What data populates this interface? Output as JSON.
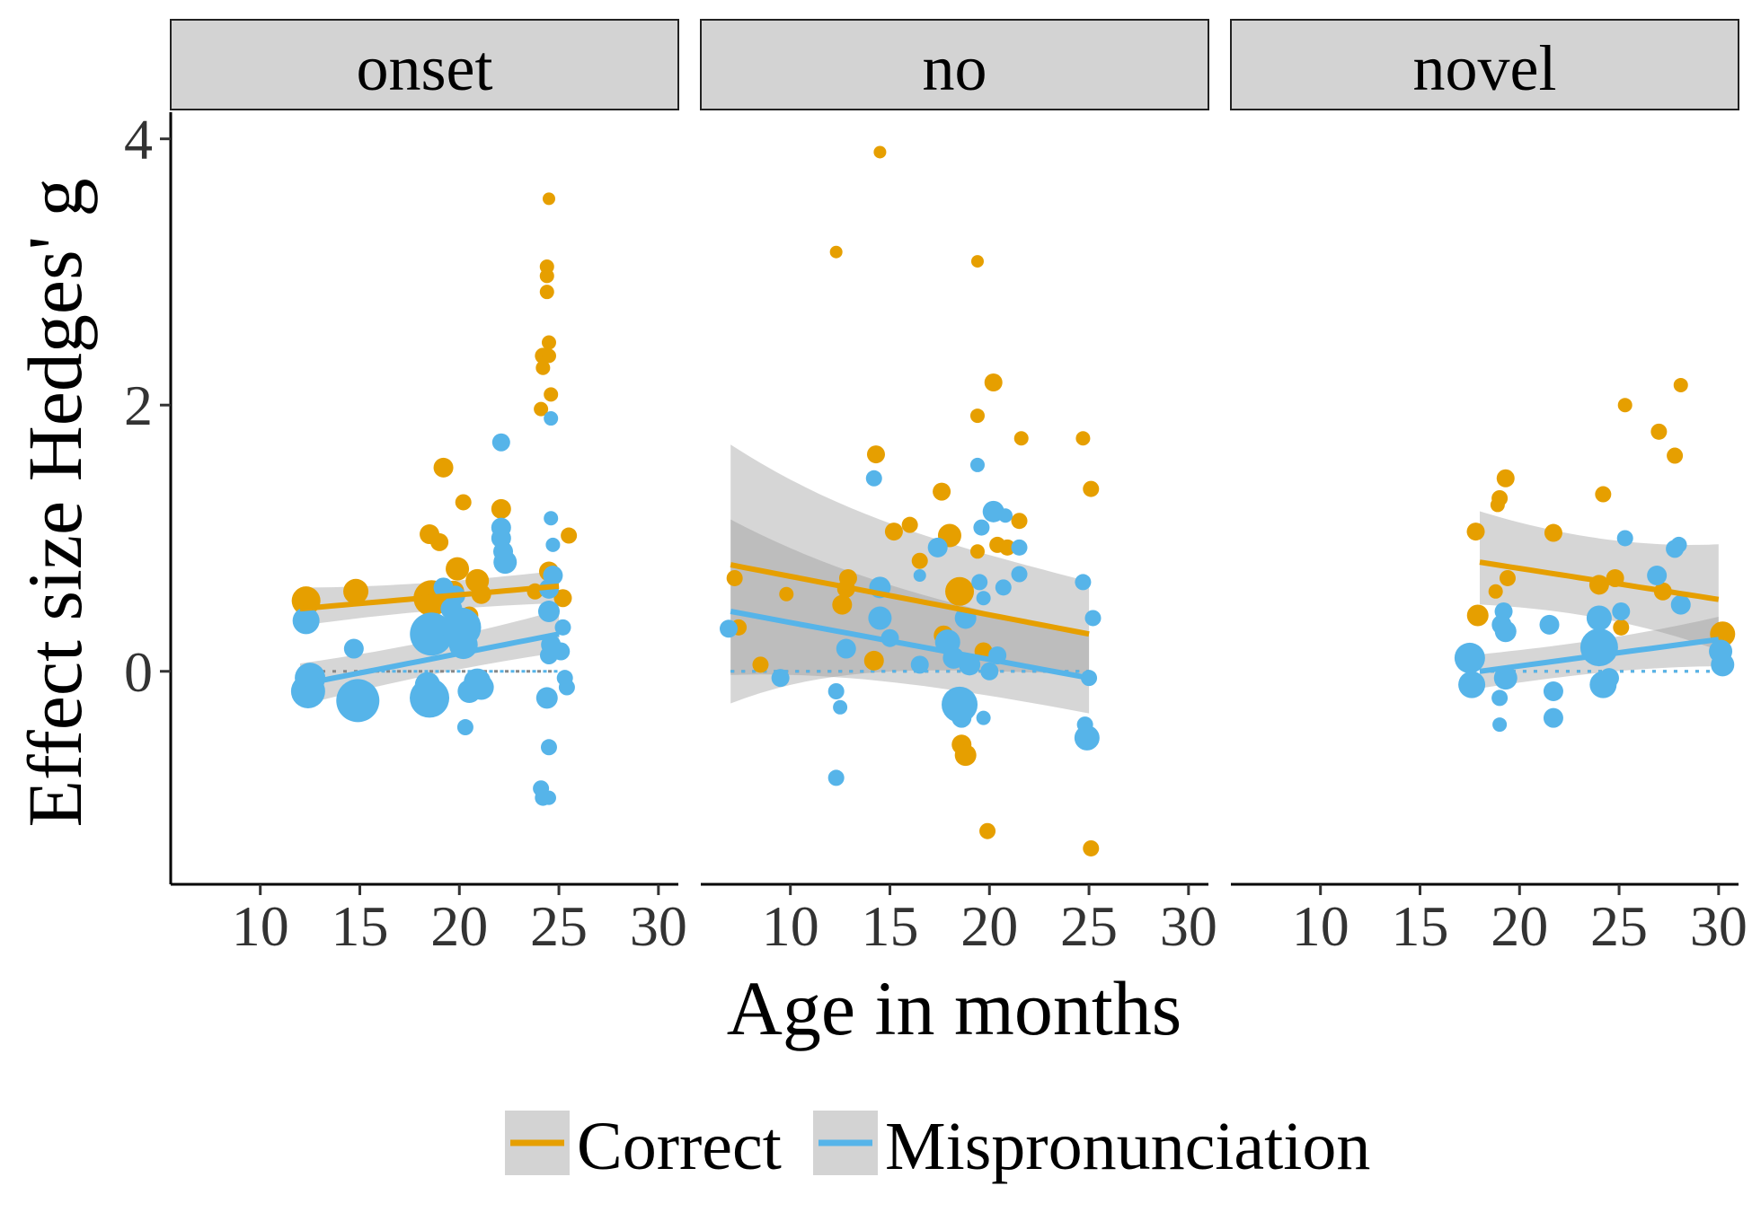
{
  "chart_data": {
    "type": "scatter",
    "xlabel": "Age in months",
    "ylabel": "Effect size Hedges' g",
    "xlim": [
      5.5,
      31
    ],
    "ylim": [
      -1.6,
      4.2
    ],
    "x_ticks": [
      10,
      15,
      20,
      25,
      30
    ],
    "y_ticks": [
      0,
      2,
      4
    ],
    "legend": {
      "position": "bottom",
      "entries": [
        {
          "name": "Correct",
          "color": "#E69F00"
        },
        {
          "name": "Mispronunciation",
          "color": "#56B4E9"
        }
      ]
    },
    "colors": {
      "Correct": "#E69F00",
      "Mispronunciation": "#56B4E9",
      "band": "#999999",
      "strip": "#d3d3d3"
    },
    "panels": [
      {
        "label": "onset",
        "fits": {
          "Correct": {
            "x": [
              12,
              25
            ],
            "y": [
              0.47,
              0.64
            ],
            "lower": [
              0.35,
              0.52
            ],
            "upper": [
              0.62,
              0.75
            ]
          },
          "Mispronunciation": {
            "x": [
              12,
              25
            ],
            "y": [
              -0.1,
              0.28
            ],
            "lower": [
              -0.25,
              0.15
            ],
            "upper": [
              0.05,
              0.45
            ]
          }
        },
        "baseline": {
          "Correct": [
            12,
            25
          ],
          "Mispronunciation": [
            15,
            25
          ]
        },
        "points": {
          "Correct": [
            [
              12.3,
              0.53,
              16
            ],
            [
              14.8,
              0.6,
              14
            ],
            [
              18.5,
              1.03,
              11
            ],
            [
              18.6,
              0.55,
              20
            ],
            [
              19.0,
              0.97,
              10
            ],
            [
              19.2,
              1.53,
              11
            ],
            [
              19.7,
              0.6,
              12
            ],
            [
              19.9,
              0.77,
              13
            ],
            [
              20.2,
              1.27,
              9
            ],
            [
              20.5,
              0.42,
              10
            ],
            [
              20.9,
              0.68,
              13
            ],
            [
              21.1,
              0.58,
              11
            ],
            [
              22.1,
              1.22,
              11
            ],
            [
              22.3,
              0.85,
              9
            ],
            [
              23.8,
              0.6,
              9
            ],
            [
              24.1,
              1.97,
              8
            ],
            [
              24.2,
              2.28,
              8
            ],
            [
              24.2,
              2.37,
              9
            ],
            [
              24.5,
              2.37,
              8
            ],
            [
              24.5,
              2.47,
              8
            ],
            [
              24.4,
              2.85,
              8
            ],
            [
              24.4,
              2.97,
              8
            ],
            [
              24.4,
              3.04,
              8
            ],
            [
              24.5,
              3.55,
              7
            ],
            [
              24.6,
              2.08,
              8
            ],
            [
              25.2,
              0.55,
              10
            ],
            [
              25.5,
              1.02,
              9
            ],
            [
              24.5,
              0.75,
              11
            ]
          ],
          "Mispronunciation": [
            [
              12.3,
              0.38,
              15
            ],
            [
              12.5,
              -0.05,
              17
            ],
            [
              12.4,
              -0.15,
              19
            ],
            [
              14.7,
              0.17,
              11
            ],
            [
              14.9,
              -0.22,
              24
            ],
            [
              18.4,
              -0.1,
              14
            ],
            [
              18.5,
              -0.2,
              22
            ],
            [
              18.6,
              0.28,
              24
            ],
            [
              19.2,
              0.63,
              11
            ],
            [
              19.6,
              0.47,
              12
            ],
            [
              19.8,
              0.57,
              11
            ],
            [
              20.1,
              0.33,
              22
            ],
            [
              20.2,
              0.2,
              16
            ],
            [
              20.3,
              -0.42,
              9
            ],
            [
              20.5,
              -0.15,
              13
            ],
            [
              20.9,
              -0.08,
              15
            ],
            [
              21.1,
              -0.12,
              14
            ],
            [
              22.1,
              1.72,
              10
            ],
            [
              22.1,
              1.08,
              11
            ],
            [
              22.1,
              1.0,
              11
            ],
            [
              22.2,
              0.9,
              11
            ],
            [
              22.3,
              0.82,
              13
            ],
            [
              24.1,
              -0.88,
              9
            ],
            [
              24.2,
              -0.95,
              9
            ],
            [
              24.4,
              -0.2,
              12
            ],
            [
              24.5,
              -0.95,
              8
            ],
            [
              24.5,
              -0.57,
              9
            ],
            [
              24.5,
              0.12,
              10
            ],
            [
              24.6,
              0.2,
              11
            ],
            [
              24.5,
              0.45,
              12
            ],
            [
              24.5,
              0.62,
              11
            ],
            [
              24.7,
              0.72,
              11
            ],
            [
              24.6,
              1.15,
              8
            ],
            [
              24.6,
              1.9,
              8
            ],
            [
              24.7,
              0.95,
              8
            ],
            [
              25.1,
              0.15,
              10
            ],
            [
              25.2,
              0.33,
              9
            ],
            [
              25.3,
              -0.05,
              9
            ],
            [
              25.4,
              -0.12,
              9
            ]
          ]
        }
      },
      {
        "label": "no",
        "fits": {
          "Correct": {
            "x": [
              7,
              25
            ],
            "y": [
              0.8,
              0.28
            ],
            "lower": [
              -0.18,
              0.0
            ],
            "upper": [
              1.65,
              0.65
            ]
          },
          "Mispronunciation": {
            "x": [
              7,
              25
            ],
            "y": [
              0.45,
              -0.05
            ],
            "lower": [
              0.0,
              -0.3
            ],
            "upper": [
              1.1,
              0.25
            ]
          }
        },
        "baseline": {
          "Correct": [
            7,
            25
          ],
          "Mispronunciation": [
            7,
            25
          ]
        },
        "points": {
          "Correct": [
            [
              7.2,
              0.7,
              9
            ],
            [
              7.4,
              0.33,
              9
            ],
            [
              8.5,
              0.05,
              9
            ],
            [
              9.8,
              0.58,
              8
            ],
            [
              12.3,
              3.15,
              7
            ],
            [
              12.6,
              0.5,
              11
            ],
            [
              12.8,
              0.62,
              10
            ],
            [
              12.9,
              0.7,
              10
            ],
            [
              14.2,
              0.08,
              11
            ],
            [
              14.3,
              1.63,
              10
            ],
            [
              14.5,
              3.9,
              7
            ],
            [
              15.2,
              1.05,
              10
            ],
            [
              16.0,
              1.1,
              9
            ],
            [
              16.5,
              0.83,
              9
            ],
            [
              17.6,
              1.35,
              10
            ],
            [
              17.7,
              0.27,
              11
            ],
            [
              18.0,
              1.02,
              13
            ],
            [
              18.5,
              0.6,
              16
            ],
            [
              18.6,
              -0.55,
              11
            ],
            [
              18.8,
              -0.63,
              12
            ],
            [
              19.4,
              0.9,
              8
            ],
            [
              19.4,
              1.92,
              8
            ],
            [
              19.4,
              3.08,
              7
            ],
            [
              19.7,
              0.15,
              10
            ],
            [
              19.9,
              -1.2,
              9
            ],
            [
              20.2,
              2.17,
              10
            ],
            [
              20.4,
              0.95,
              9
            ],
            [
              20.9,
              0.93,
              9
            ],
            [
              21.5,
              1.13,
              9
            ],
            [
              21.6,
              1.75,
              8
            ],
            [
              24.7,
              1.75,
              8
            ],
            [
              25.1,
              1.37,
              9
            ],
            [
              25.1,
              -1.33,
              9
            ]
          ],
          "Mispronunciation": [
            [
              6.9,
              0.32,
              10
            ],
            [
              9.5,
              -0.05,
              10
            ],
            [
              12.3,
              -0.8,
              9
            ],
            [
              12.3,
              -0.15,
              9
            ],
            [
              12.5,
              -0.27,
              8
            ],
            [
              12.8,
              0.17,
              11
            ],
            [
              14.2,
              1.45,
              9
            ],
            [
              14.5,
              0.63,
              12
            ],
            [
              14.5,
              0.4,
              13
            ],
            [
              15.0,
              0.25,
              10
            ],
            [
              16.5,
              0.05,
              10
            ],
            [
              16.5,
              0.72,
              7
            ],
            [
              17.4,
              0.93,
              11
            ],
            [
              17.9,
              0.22,
              14
            ],
            [
              18.2,
              0.1,
              12
            ],
            [
              18.5,
              -0.25,
              20
            ],
            [
              18.6,
              -0.35,
              11
            ],
            [
              18.8,
              0.4,
              12
            ],
            [
              19.0,
              0.05,
              12
            ],
            [
              19.4,
              1.55,
              8
            ],
            [
              19.5,
              0.67,
              9
            ],
            [
              19.6,
              1.08,
              9
            ],
            [
              19.7,
              0.55,
              8
            ],
            [
              19.7,
              -0.35,
              8
            ],
            [
              20.0,
              0.0,
              10
            ],
            [
              20.2,
              1.2,
              12
            ],
            [
              20.4,
              0.12,
              10
            ],
            [
              20.7,
              0.63,
              9
            ],
            [
              20.8,
              1.17,
              8
            ],
            [
              21.5,
              0.93,
              9
            ],
            [
              21.5,
              0.73,
              9
            ],
            [
              24.7,
              0.67,
              9
            ],
            [
              24.8,
              -0.4,
              9
            ],
            [
              24.9,
              -0.5,
              14
            ],
            [
              25.0,
              -0.05,
              9
            ],
            [
              25.2,
              0.4,
              9
            ]
          ]
        }
      },
      {
        "label": "novel",
        "fits": {
          "Correct": {
            "x": [
              18,
              30
            ],
            "y": [
              0.82,
              0.54
            ],
            "lower": [
              0.52,
              0.18
            ],
            "upper": [
              1.18,
              0.93
            ]
          },
          "Mispronunciation": {
            "x": [
              18,
              30
            ],
            "y": [
              0.0,
              0.24
            ],
            "lower": [
              -0.12,
              0.05
            ],
            "upper": [
              0.12,
              0.4
            ]
          }
        },
        "baseline": {
          "Correct": [
            18,
            30
          ],
          "Mispronunciation": [
            18,
            30
          ]
        },
        "points": {
          "Correct": [
            [
              17.8,
              1.05,
              10
            ],
            [
              17.9,
              0.42,
              12
            ],
            [
              18.8,
              0.6,
              8
            ],
            [
              18.9,
              1.25,
              8
            ],
            [
              19.0,
              1.3,
              9
            ],
            [
              19.3,
              1.45,
              10
            ],
            [
              19.4,
              0.7,
              9
            ],
            [
              21.7,
              1.04,
              10
            ],
            [
              24.0,
              0.65,
              11
            ],
            [
              24.2,
              1.33,
              9
            ],
            [
              24.8,
              0.7,
              10
            ],
            [
              25.1,
              0.33,
              9
            ],
            [
              25.3,
              2.0,
              8
            ],
            [
              27.0,
              1.8,
              9
            ],
            [
              27.2,
              0.6,
              10
            ],
            [
              27.8,
              1.62,
              9
            ],
            [
              28.1,
              2.15,
              8
            ],
            [
              30.2,
              0.28,
              14
            ]
          ],
          "Mispronunciation": [
            [
              17.5,
              0.1,
              17
            ],
            [
              17.6,
              -0.1,
              15
            ],
            [
              19.0,
              -0.4,
              8
            ],
            [
              19.0,
              -0.2,
              9
            ],
            [
              19.1,
              0.35,
              11
            ],
            [
              19.2,
              0.45,
              10
            ],
            [
              19.3,
              0.3,
              12
            ],
            [
              19.3,
              -0.05,
              13
            ],
            [
              21.5,
              0.35,
              11
            ],
            [
              21.7,
              -0.15,
              11
            ],
            [
              21.7,
              -0.35,
              11
            ],
            [
              24.0,
              0.4,
              14
            ],
            [
              24.0,
              0.18,
              21
            ],
            [
              24.2,
              -0.1,
              15
            ],
            [
              24.5,
              -0.05,
              11
            ],
            [
              25.1,
              0.45,
              10
            ],
            [
              25.3,
              1.0,
              9
            ],
            [
              26.9,
              0.72,
              11
            ],
            [
              27.8,
              0.92,
              10
            ],
            [
              28.0,
              0.95,
              9
            ],
            [
              28.1,
              0.5,
              11
            ],
            [
              30.1,
              0.15,
              13
            ],
            [
              30.2,
              0.05,
              13
            ]
          ]
        }
      }
    ]
  }
}
